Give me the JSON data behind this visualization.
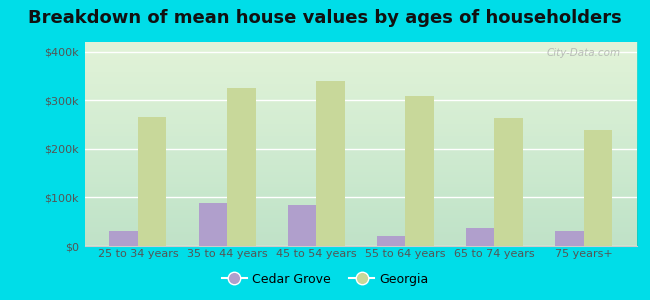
{
  "title": "Breakdown of mean house values by ages of householders",
  "categories": [
    "25 to 34 years",
    "35 to 44 years",
    "45 to 54 years",
    "55 to 64 years",
    "65 to 74 years",
    "75 years+"
  ],
  "cedar_grove": [
    30000,
    88000,
    85000,
    20000,
    38000,
    30000
  ],
  "georgia": [
    265000,
    325000,
    340000,
    308000,
    263000,
    238000
  ],
  "cedar_grove_color": "#b09fcc",
  "georgia_color": "#c8d89a",
  "background_outer": "#00dde8",
  "ylim": [
    0,
    420000
  ],
  "yticks": [
    0,
    100000,
    200000,
    300000,
    400000
  ],
  "title_fontsize": 13,
  "legend_labels": [
    "Cedar Grove",
    "Georgia"
  ],
  "watermark": "City-Data.com"
}
